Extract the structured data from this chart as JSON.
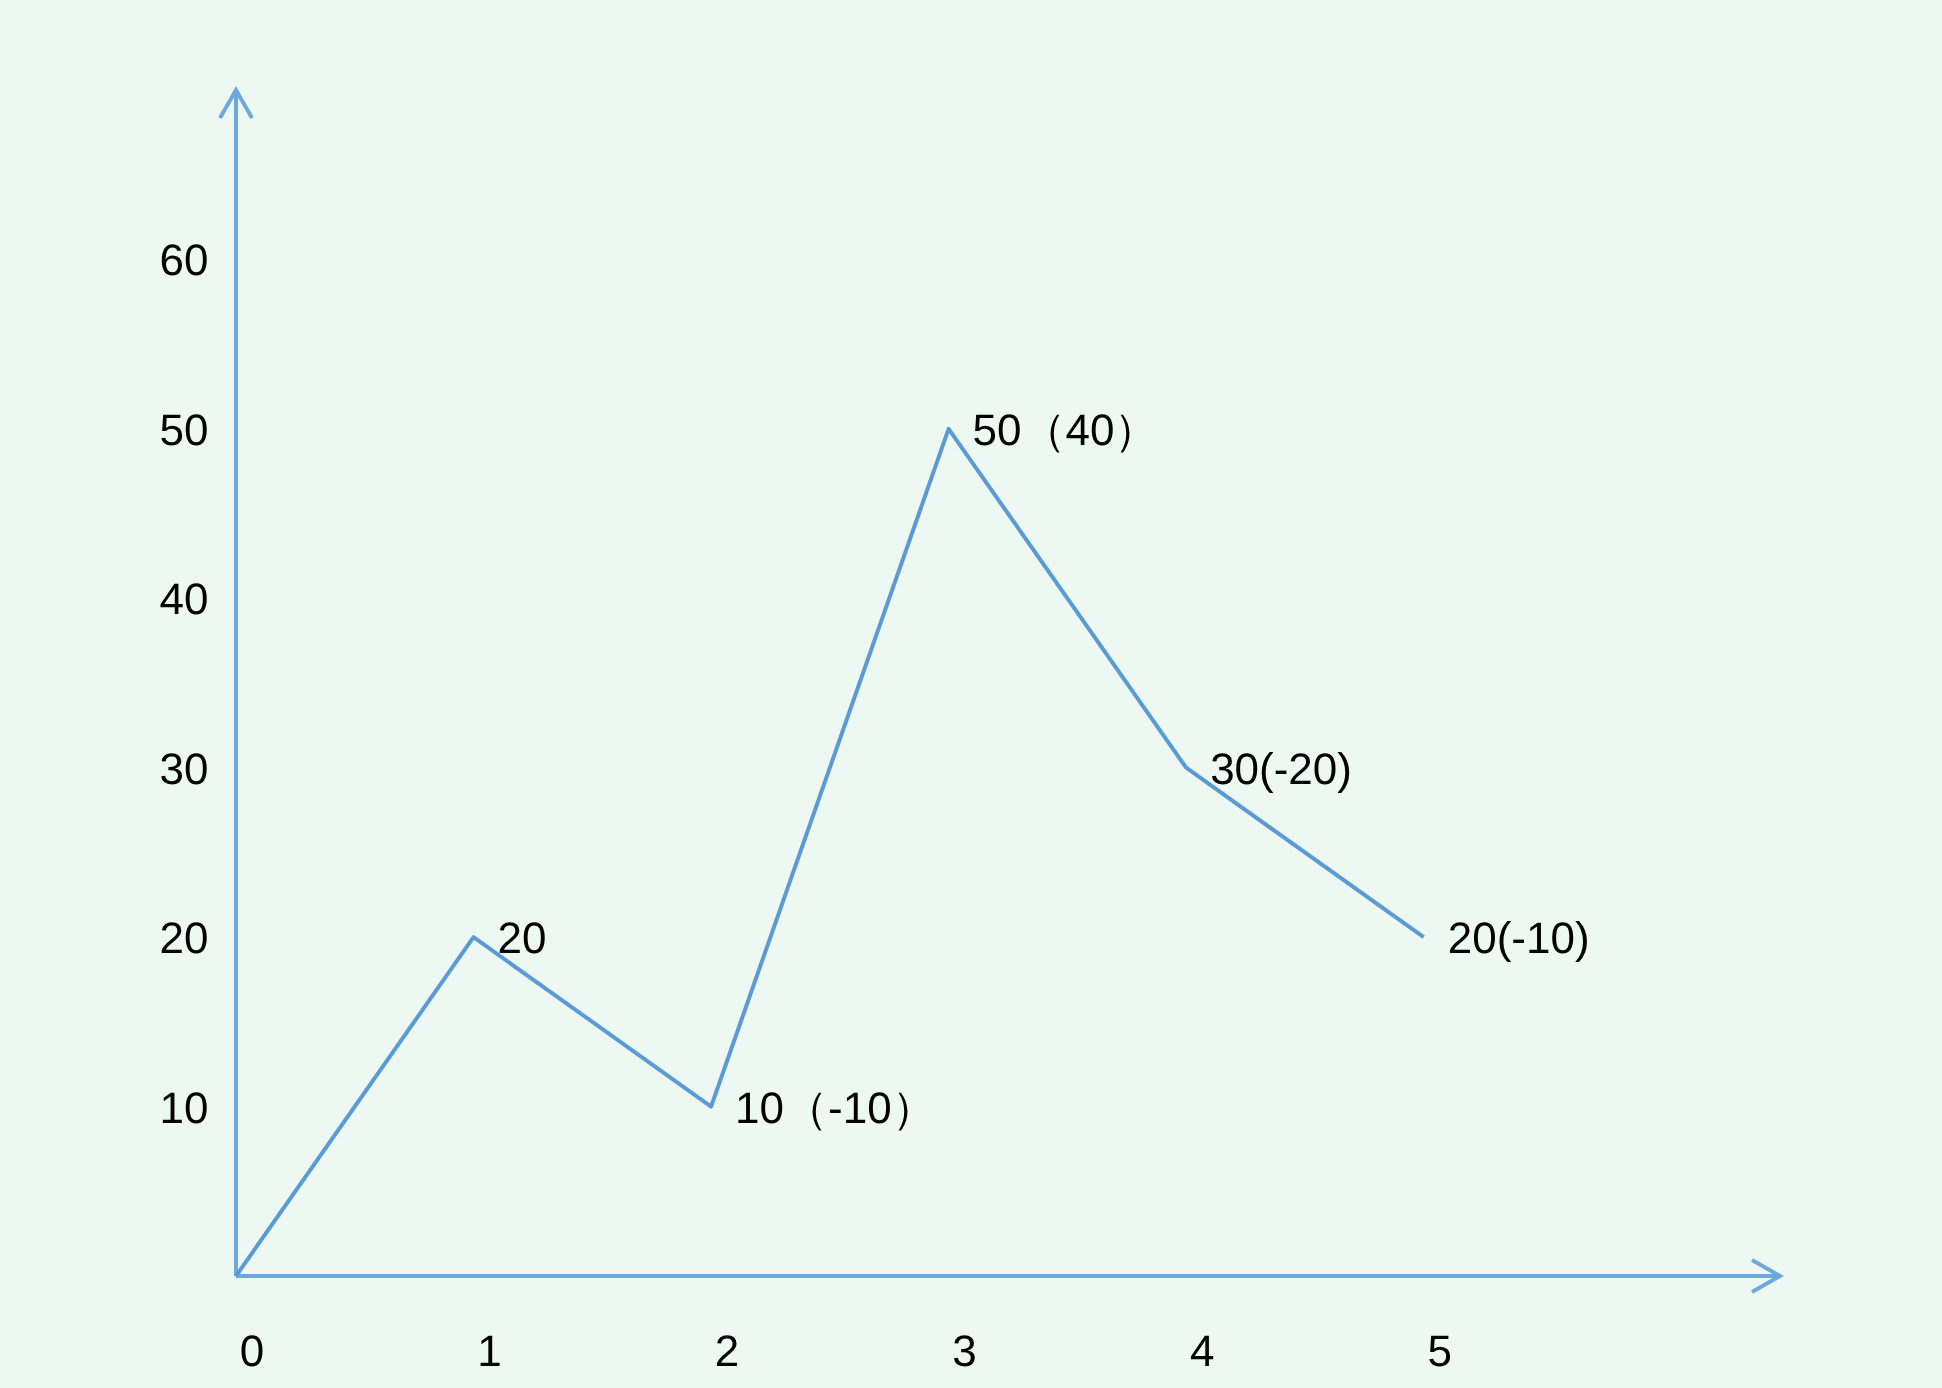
{
  "chart_data": {
    "type": "line",
    "x": [
      0,
      1,
      2,
      3,
      4,
      5
    ],
    "values": [
      0,
      20,
      10,
      50,
      30,
      20
    ],
    "value_labels": [
      null,
      "20",
      "10（-10）",
      "50（40）",
      "30(-20)",
      "20(-10)"
    ],
    "color": "#5b9bd5",
    "xlim": [
      0,
      6.5
    ],
    "ylim": [
      0,
      70
    ],
    "xticks": [
      0,
      1,
      2,
      3,
      4,
      5
    ],
    "yticks": [
      10,
      20,
      30,
      40,
      50,
      60
    ]
  }
}
